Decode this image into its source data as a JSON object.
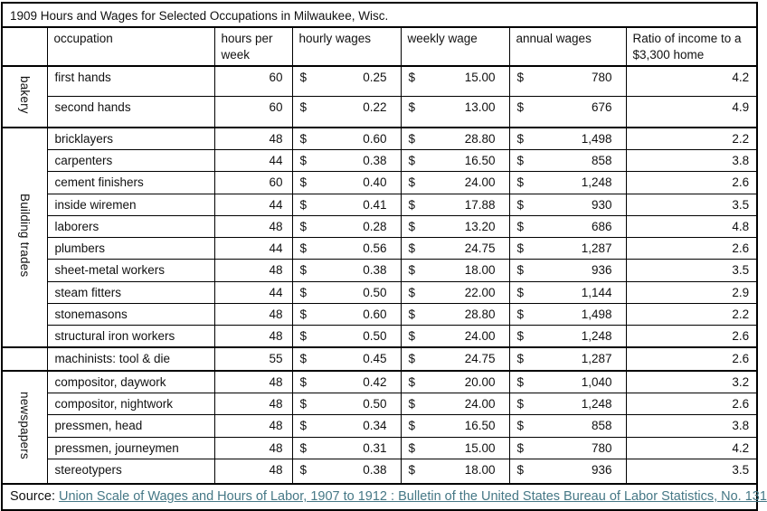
{
  "chart_data": {
    "type": "table",
    "title": "1909 Hours and Wages for Selected Occupations in Milwaukee, Wisc.",
    "currency": "$",
    "columns": {
      "occupation": "occupation",
      "hours": "hours per week",
      "hourly": "hourly wages",
      "weekly": "weekly wage",
      "annual": "annual wages",
      "ratio": "Ratio of income to a $3,300 home"
    },
    "groups": [
      {
        "label": "bakery",
        "rows": [
          {
            "occupation": "first hands",
            "hours": "60",
            "hourly": "0.25",
            "weekly": "15.00",
            "annual": "780",
            "ratio": "4.2"
          },
          {
            "occupation": "second hands",
            "hours": "60",
            "hourly": "0.22",
            "weekly": "13.00",
            "annual": "676",
            "ratio": "4.9"
          }
        ]
      },
      {
        "label": "Building trades",
        "rows": [
          {
            "occupation": "bricklayers",
            "hours": "48",
            "hourly": "0.60",
            "weekly": "28.80",
            "annual": "1,498",
            "ratio": "2.2"
          },
          {
            "occupation": "carpenters",
            "hours": "44",
            "hourly": "0.38",
            "weekly": "16.50",
            "annual": "858",
            "ratio": "3.8"
          },
          {
            "occupation": "cement finishers",
            "hours": "60",
            "hourly": "0.40",
            "weekly": "24.00",
            "annual": "1,248",
            "ratio": "2.6"
          },
          {
            "occupation": "inside wiremen",
            "hours": "44",
            "hourly": "0.41",
            "weekly": "17.88",
            "annual": "930",
            "ratio": "3.5"
          },
          {
            "occupation": "laborers",
            "hours": "48",
            "hourly": "0.28",
            "weekly": "13.20",
            "annual": "686",
            "ratio": "4.8"
          },
          {
            "occupation": "plumbers",
            "hours": "44",
            "hourly": "0.56",
            "weekly": "24.75",
            "annual": "1,287",
            "ratio": "2.6"
          },
          {
            "occupation": "sheet-metal workers",
            "hours": "48",
            "hourly": "0.38",
            "weekly": "18.00",
            "annual": "936",
            "ratio": "3.5"
          },
          {
            "occupation": "steam fitters",
            "hours": "44",
            "hourly": "0.50",
            "weekly": "22.00",
            "annual": "1,144",
            "ratio": "2.9"
          },
          {
            "occupation": "stonemasons",
            "hours": "48",
            "hourly": "0.60",
            "weekly": "28.80",
            "annual": "1,498",
            "ratio": "2.2"
          },
          {
            "occupation": "structural iron workers",
            "hours": "48",
            "hourly": "0.50",
            "weekly": "24.00",
            "annual": "1,248",
            "ratio": "2.6"
          }
        ]
      },
      {
        "label": "",
        "rows": [
          {
            "occupation": "machinists: tool & die",
            "hours": "55",
            "hourly": "0.45",
            "weekly": "24.75",
            "annual": "1,287",
            "ratio": "2.6"
          }
        ]
      },
      {
        "label": "newspapers",
        "rows": [
          {
            "occupation": "compositor, daywork",
            "hours": "48",
            "hourly": "0.42",
            "weekly": "20.00",
            "annual": "1,040",
            "ratio": "3.2"
          },
          {
            "occupation": "compositor, nightwork",
            "hours": "48",
            "hourly": "0.50",
            "weekly": "24.00",
            "annual": "1,248",
            "ratio": "2.6"
          },
          {
            "occupation": "pressmen, head",
            "hours": "48",
            "hourly": "0.34",
            "weekly": "16.50",
            "annual": "858",
            "ratio": "3.8"
          },
          {
            "occupation": "pressmen, journeymen",
            "hours": "48",
            "hourly": "0.31",
            "weekly": "15.00",
            "annual": "780",
            "ratio": "4.2"
          },
          {
            "occupation": "stereotypers",
            "hours": "48",
            "hourly": "0.38",
            "weekly": "18.00",
            "annual": "936",
            "ratio": "3.5"
          }
        ]
      }
    ],
    "source": {
      "prefix": "Source:",
      "link_text": "Union Scale of Wages and Hours of Labor, 1907 to 1912 : Bulletin of the United States Bureau of Labor Statistics, No. 131"
    },
    "colors": {
      "link": "#467886",
      "border": "#000000",
      "background": "#ffffff"
    }
  }
}
